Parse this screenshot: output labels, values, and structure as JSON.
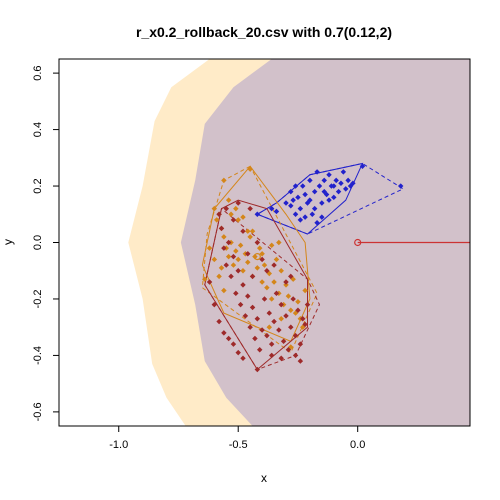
{
  "chart_data": {
    "type": "scatter",
    "title": "r_x0.2_rollback_20.csv with 0.7(0.12,2)",
    "xlabel": "x",
    "ylabel": "y",
    "xlim": [
      -1.25,
      0.47
    ],
    "ylim": [
      -0.65,
      0.65
    ],
    "x_ticks": [
      -1.0,
      -0.5,
      0.0
    ],
    "x_tick_labels": [
      "-1.0",
      "-0.5",
      "0.0"
    ],
    "y_ticks": [
      -0.6,
      -0.4,
      -0.2,
      0.0,
      0.2,
      0.4,
      0.6
    ],
    "y_tick_labels": [
      "-0.6",
      "-0.4",
      "-0.2",
      "0.0",
      "0.2",
      "0.4",
      "0.6"
    ],
    "grid": false,
    "regions": [
      {
        "color": "#FFEBC8",
        "boundary": [
          [
            -0.62,
            0.65
          ],
          [
            -0.78,
            0.55
          ],
          [
            -0.85,
            0.43
          ],
          [
            -0.9,
            0.2
          ],
          [
            -0.96,
            0.0
          ],
          [
            -0.9,
            -0.2
          ],
          [
            -0.86,
            -0.43
          ],
          [
            -0.8,
            -0.55
          ],
          [
            -0.72,
            -0.65
          ]
        ]
      },
      {
        "color": "#D2C1CA",
        "boundary": [
          [
            -0.36,
            0.65
          ],
          [
            -0.52,
            0.55
          ],
          [
            -0.64,
            0.42
          ],
          [
            -0.68,
            0.22
          ],
          [
            -0.74,
            0.0
          ],
          [
            -0.68,
            -0.22
          ],
          [
            -0.64,
            -0.42
          ],
          [
            -0.55,
            -0.55
          ],
          [
            -0.44,
            -0.65
          ]
        ]
      }
    ],
    "reference": {
      "color": "#CC3333",
      "point": [
        0.0,
        0.0
      ],
      "line_to_x": 0.47
    },
    "series": [
      {
        "color": "#2222CC",
        "points": [
          [
            -0.28,
            0.18
          ],
          [
            -0.26,
            0.2
          ],
          [
            -0.25,
            0.16
          ],
          [
            -0.24,
            0.12
          ],
          [
            -0.23,
            0.2
          ],
          [
            -0.22,
            0.17
          ],
          [
            -0.21,
            0.14
          ],
          [
            -0.2,
            0.22
          ],
          [
            -0.19,
            0.1
          ],
          [
            -0.18,
            0.18
          ],
          [
            -0.17,
            0.25
          ],
          [
            -0.16,
            0.2
          ],
          [
            -0.15,
            0.14
          ],
          [
            -0.14,
            0.22
          ],
          [
            -0.13,
            0.17
          ],
          [
            -0.12,
            0.24
          ],
          [
            -0.11,
            0.2
          ],
          [
            -0.1,
            0.16
          ],
          [
            -0.09,
            0.22
          ],
          [
            -0.08,
            0.18
          ],
          [
            -0.07,
            0.21
          ],
          [
            -0.06,
            0.25
          ],
          [
            -0.05,
            0.19
          ],
          [
            -0.04,
            0.22
          ],
          [
            -0.03,
            0.2
          ],
          [
            -0.02,
            0.21
          ],
          [
            -0.18,
            0.12
          ],
          [
            -0.22,
            0.09
          ],
          [
            -0.26,
            0.1
          ],
          [
            -0.3,
            0.14
          ],
          [
            -0.34,
            0.11
          ],
          [
            -0.28,
            0.13
          ],
          [
            -0.15,
            0.09
          ],
          [
            -0.2,
            0.15
          ],
          [
            -0.12,
            0.15
          ],
          [
            -0.24,
            0.08
          ],
          [
            -0.17,
            0.07
          ],
          [
            -0.1,
            0.2
          ],
          [
            -0.14,
            0.18
          ],
          [
            -0.27,
            0.15
          ],
          [
            0.02,
            0.27
          ],
          [
            0.18,
            0.2
          ],
          [
            -0.42,
            0.1
          ],
          [
            -0.36,
            0.12
          ]
        ],
        "hull": [
          [
            -0.21,
            0.03
          ],
          [
            -0.42,
            0.1
          ],
          [
            -0.34,
            0.14
          ],
          [
            -0.2,
            0.24
          ],
          [
            0.02,
            0.28
          ],
          [
            -0.05,
            0.15
          ]
        ],
        "hull_dashed": [
          [
            -0.21,
            0.03
          ],
          [
            -0.42,
            0.1
          ],
          [
            -0.34,
            0.14
          ],
          [
            -0.2,
            0.24
          ],
          [
            0.02,
            0.28
          ],
          [
            0.19,
            0.19
          ]
        ]
      },
      {
        "color": "#D4861A",
        "points": [
          [
            -0.6,
            0.12
          ],
          [
            -0.59,
            0.08
          ],
          [
            -0.58,
            0.1
          ],
          [
            -0.57,
            0.05
          ],
          [
            -0.56,
            0.02
          ],
          [
            -0.55,
            -0.02
          ],
          [
            -0.54,
            -0.05
          ],
          [
            -0.53,
            0.0
          ],
          [
            -0.52,
            -0.08
          ],
          [
            -0.51,
            -0.03
          ],
          [
            -0.5,
            -0.06
          ],
          [
            -0.49,
            -0.01
          ],
          [
            -0.48,
            -0.1
          ],
          [
            -0.47,
            -0.04
          ],
          [
            -0.46,
            -0.07
          ],
          [
            -0.45,
            0.02
          ],
          [
            -0.44,
            -0.12
          ],
          [
            -0.43,
            -0.05
          ],
          [
            -0.42,
            -0.09
          ],
          [
            -0.41,
            -0.02
          ],
          [
            -0.4,
            -0.14
          ],
          [
            -0.39,
            -0.08
          ],
          [
            -0.38,
            -0.16
          ],
          [
            -0.37,
            -0.11
          ],
          [
            -0.36,
            -0.2
          ],
          [
            -0.35,
            -0.14
          ],
          [
            -0.34,
            -0.06
          ],
          [
            -0.33,
            -0.18
          ],
          [
            -0.32,
            -0.1
          ],
          [
            -0.31,
            -0.22
          ],
          [
            -0.3,
            -0.15
          ],
          [
            -0.29,
            -0.19
          ],
          [
            -0.28,
            -0.24
          ],
          [
            -0.27,
            -0.13
          ],
          [
            -0.26,
            -0.25
          ],
          [
            -0.25,
            -0.21
          ],
          [
            -0.24,
            -0.27
          ],
          [
            -0.23,
            -0.3
          ],
          [
            -0.22,
            -0.17
          ],
          [
            -0.5,
            0.08
          ],
          [
            -0.53,
            0.1
          ],
          [
            -0.46,
            0.04
          ],
          [
            -0.6,
            -0.06
          ],
          [
            -0.58,
            -0.12
          ],
          [
            -0.56,
            -0.17
          ],
          [
            -0.62,
            -0.02
          ],
          [
            -0.54,
            0.15
          ],
          [
            -0.44,
            0.04
          ],
          [
            -0.48,
            0.09
          ],
          [
            -0.4,
            -0.04
          ],
          [
            -0.36,
            -0.01
          ],
          [
            -0.57,
            -0.09
          ],
          [
            -0.51,
            0.12
          ],
          [
            -0.64,
            -0.13
          ],
          [
            -0.37,
            -0.3
          ],
          [
            -0.32,
            -0.27
          ],
          [
            -0.28,
            -0.37
          ],
          [
            -0.45,
            0.26
          ],
          [
            -0.56,
            0.22
          ],
          [
            -0.33,
            0.0
          ]
        ],
        "hull": [
          [
            -0.45,
            0.27
          ],
          [
            -0.6,
            0.12
          ],
          [
            -0.65,
            -0.08
          ],
          [
            -0.56,
            -0.25
          ],
          [
            -0.28,
            -0.35
          ],
          [
            -0.2,
            -0.2
          ],
          [
            -0.22,
            0.0
          ],
          [
            -0.3,
            0.1
          ]
        ],
        "hull_dashed": [
          [
            -0.45,
            0.27
          ],
          [
            -0.56,
            0.22
          ],
          [
            -0.63,
            0.03
          ],
          [
            -0.65,
            -0.16
          ],
          [
            -0.28,
            -0.39
          ],
          [
            -0.17,
            -0.18
          ]
        ]
      },
      {
        "color": "#9E2A2A",
        "points": [
          [
            -0.58,
            0.1
          ],
          [
            -0.57,
            0.05
          ],
          [
            -0.56,
            -0.02
          ],
          [
            -0.55,
            -0.08
          ],
          [
            -0.54,
            0.0
          ],
          [
            -0.53,
            -0.12
          ],
          [
            -0.52,
            -0.05
          ],
          [
            -0.51,
            -0.18
          ],
          [
            -0.5,
            -0.1
          ],
          [
            -0.49,
            -0.22
          ],
          [
            -0.48,
            -0.15
          ],
          [
            -0.47,
            -0.26
          ],
          [
            -0.46,
            -0.19
          ],
          [
            -0.45,
            -0.3
          ],
          [
            -0.44,
            -0.23
          ],
          [
            -0.43,
            -0.34
          ],
          [
            -0.42,
            -0.27
          ],
          [
            -0.41,
            -0.38
          ],
          [
            -0.4,
            -0.31
          ],
          [
            -0.39,
            -0.2
          ],
          [
            -0.38,
            -0.33
          ],
          [
            -0.37,
            -0.25
          ],
          [
            -0.36,
            -0.36
          ],
          [
            -0.35,
            -0.28
          ],
          [
            -0.34,
            -0.18
          ],
          [
            -0.33,
            -0.31
          ],
          [
            -0.32,
            -0.22
          ],
          [
            -0.31,
            -0.35
          ],
          [
            -0.3,
            -0.26
          ],
          [
            -0.29,
            -0.38
          ],
          [
            -0.28,
            -0.3
          ],
          [
            -0.27,
            -0.2
          ],
          [
            -0.26,
            -0.33
          ],
          [
            -0.25,
            -0.24
          ],
          [
            -0.24,
            -0.36
          ],
          [
            -0.23,
            -0.27
          ],
          [
            -0.22,
            -0.29
          ],
          [
            -0.21,
            -0.22
          ],
          [
            -0.62,
            -0.14
          ],
          [
            -0.6,
            -0.22
          ],
          [
            -0.58,
            -0.28
          ],
          [
            -0.56,
            -0.32
          ],
          [
            -0.54,
            -0.34
          ],
          [
            -0.52,
            -0.36
          ],
          [
            -0.5,
            -0.39
          ],
          [
            -0.48,
            -0.41
          ],
          [
            -0.44,
            -0.12
          ],
          [
            -0.4,
            -0.06
          ],
          [
            -0.46,
            -0.04
          ],
          [
            -0.42,
            0.0
          ],
          [
            -0.48,
            0.04
          ],
          [
            -0.52,
            0.08
          ],
          [
            -0.55,
            0.12
          ],
          [
            -0.5,
            0.14
          ],
          [
            -0.45,
            0.12
          ],
          [
            -0.38,
            -0.1
          ],
          [
            -0.35,
            -0.08
          ],
          [
            -0.3,
            -0.14
          ],
          [
            -0.28,
            -0.12
          ],
          [
            -0.42,
            -0.45
          ],
          [
            -0.36,
            -0.4
          ],
          [
            -0.32,
            -0.41
          ],
          [
            -0.26,
            -0.4
          ],
          [
            -0.24,
            -0.42
          ]
        ],
        "hull": [
          [
            -0.57,
            0.12
          ],
          [
            -0.64,
            -0.15
          ],
          [
            -0.42,
            -0.45
          ],
          [
            -0.21,
            -0.3
          ],
          [
            -0.21,
            -0.13
          ],
          [
            -0.38,
            0.12
          ],
          [
            -0.5,
            0.15
          ]
        ],
        "hull_dashed": [
          [
            -0.57,
            0.12
          ],
          [
            -0.64,
            -0.15
          ],
          [
            -0.42,
            -0.45
          ],
          [
            -0.26,
            -0.4
          ],
          [
            -0.16,
            -0.22
          ],
          [
            -0.21,
            -0.13
          ]
        ]
      }
    ]
  }
}
